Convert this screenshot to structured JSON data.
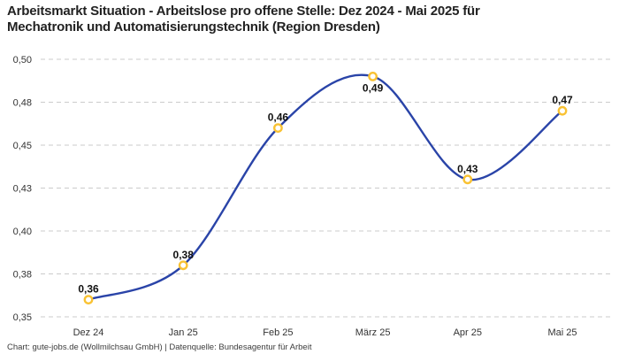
{
  "header": {
    "title_line1": "Arbeitsmarkt Situation - Arbeitslose pro offene Stelle: Dez 2024 - Mai 2025 für",
    "title_line2": "Mechatronik und Automatisierungstechnik (Region Dresden)"
  },
  "footer": {
    "text": "Chart: gute-jobs.de (Wollmilchsau GmbH) | Datenquelle: Bundesagentur für Arbeit"
  },
  "chart_data": {
    "type": "line",
    "title": "Arbeitsmarkt Situation - Arbeitslose pro offene Stelle: Dez 2024 - Mai 2025 für Mechatronik und Automatisierungstechnik (Region Dresden)",
    "categories": [
      "Dez 24",
      "Jan 25",
      "Feb 25",
      "März 25",
      "Apr 25",
      "Mai 25"
    ],
    "values": [
      0.36,
      0.38,
      0.46,
      0.49,
      0.43,
      0.47
    ],
    "value_labels": [
      "0,36",
      "0,38",
      "0,46",
      "0,49",
      "0,43",
      "0,47"
    ],
    "value_label_position": [
      "above",
      "above",
      "above",
      "below",
      "above",
      "above"
    ],
    "ylim": [
      0.35,
      0.5
    ],
    "y_ticks": [
      0.35,
      0.375,
      0.4,
      0.425,
      0.45,
      0.475,
      0.5
    ],
    "y_tick_labels": [
      "0,35",
      "0,38",
      "0,40",
      "0,43",
      "0,45",
      "0,48",
      "0,50"
    ],
    "xlabel": "",
    "ylabel": "",
    "grid": "horizontal-dashed",
    "legend_position": "none",
    "colors": {
      "line": "#2a44a8",
      "marker": "#f9c233",
      "marker_fill": "#ffffff",
      "gridline": "#cbcbcb",
      "tick_label": "#333333",
      "value_label": "#111111"
    }
  }
}
